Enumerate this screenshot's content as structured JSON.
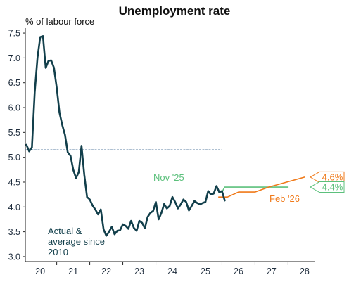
{
  "chart_data": {
    "type": "line",
    "title": "Unemployment rate",
    "ylabel": "% of labour force",
    "xlabel": "",
    "ylim": [
      2.9,
      7.6
    ],
    "xlim": [
      2019.55,
      2028.3
    ],
    "y_ticks": [
      "3.0",
      "3.5",
      "4.0",
      "4.5",
      "5.0",
      "5.5",
      "6.0",
      "6.5",
      "7.0",
      "7.5"
    ],
    "x_ticks": [
      {
        "label": "20",
        "at": 2020.0
      },
      {
        "label": "21",
        "at": 2021.0
      },
      {
        "label": "22",
        "at": 2022.0
      },
      {
        "label": "23",
        "at": 2023.0
      },
      {
        "label": "24",
        "at": 2024.0
      },
      {
        "label": "25",
        "at": 2025.0
      },
      {
        "label": "26",
        "at": 2026.0
      },
      {
        "label": "27",
        "at": 2027.0
      },
      {
        "label": "28",
        "at": 2028.0
      }
    ],
    "grid": false,
    "colors": {
      "actual": "#123f4b",
      "average": "#5b7fa3",
      "nov25": "#5cc07c",
      "feb26": "#f07a1a"
    },
    "annotations": {
      "actual_label": [
        "Actual &",
        "average since",
        "2010"
      ],
      "nov_label": "Nov '25",
      "feb_label": "Feb '26",
      "nov_end_label": "4.4%",
      "feb_end_label": "4.6%"
    },
    "series": [
      {
        "key": "actual",
        "x": [
          2019.583,
          2019.667,
          2019.75,
          2019.833,
          2019.917,
          2020.0,
          2020.083,
          2020.167,
          2020.25,
          2020.333,
          2020.417,
          2020.5,
          2020.583,
          2020.667,
          2020.75,
          2020.833,
          2020.917,
          2021.0,
          2021.083,
          2021.167,
          2021.25,
          2021.333,
          2021.417,
          2021.5,
          2021.583,
          2021.667,
          2021.75,
          2021.833,
          2021.917,
          2022.0,
          2022.083,
          2022.167,
          2022.25,
          2022.333,
          2022.417,
          2022.5,
          2022.583,
          2022.667,
          2022.75,
          2022.833,
          2022.917,
          2023.0,
          2023.083,
          2023.167,
          2023.25,
          2023.333,
          2023.417,
          2023.5,
          2023.583,
          2023.667,
          2023.75,
          2023.833,
          2023.917,
          2024.0,
          2024.083,
          2024.167,
          2024.25,
          2024.333,
          2024.417,
          2024.5,
          2024.583,
          2024.667,
          2024.75,
          2024.833,
          2024.917,
          2025.0,
          2025.083,
          2025.167,
          2025.25,
          2025.333,
          2025.417,
          2025.5,
          2025.583
        ],
        "values": [
          5.25,
          5.12,
          5.2,
          6.3,
          7.0,
          7.42,
          7.44,
          6.8,
          6.94,
          6.95,
          6.8,
          6.4,
          5.9,
          5.65,
          5.45,
          5.1,
          5.03,
          4.75,
          4.58,
          4.7,
          5.23,
          4.65,
          4.2,
          4.15,
          4.03,
          3.95,
          3.85,
          3.95,
          3.55,
          3.42,
          3.5,
          3.6,
          3.45,
          3.52,
          3.53,
          3.65,
          3.62,
          3.56,
          3.72,
          3.58,
          3.52,
          3.72,
          3.68,
          3.57,
          3.8,
          3.88,
          3.92,
          4.1,
          3.75,
          3.88,
          4.06,
          3.97,
          4.02,
          4.2,
          4.1,
          3.97,
          4.05,
          4.15,
          4.1,
          3.93,
          4.02,
          4.12,
          4.08,
          4.05,
          4.08,
          4.1,
          4.32,
          4.25,
          4.27,
          4.42,
          4.3,
          4.32,
          4.13
        ]
      },
      {
        "key": "average",
        "x": [
          2019.55,
          2025.5
        ],
        "values": [
          5.15,
          5.15
        ]
      },
      {
        "key": "nov25",
        "x": [
          2025.4,
          2025.5,
          2025.583,
          2026.0,
          2027.5
        ],
        "values": [
          4.3,
          4.3,
          4.4,
          4.4,
          4.4
        ]
      },
      {
        "key": "feb26",
        "x": [
          2025.4,
          2025.667,
          2026.0,
          2026.5,
          2026.917,
          2028.0
        ],
        "values": [
          4.2,
          4.2,
          4.3,
          4.3,
          4.4,
          4.6
        ]
      }
    ]
  }
}
